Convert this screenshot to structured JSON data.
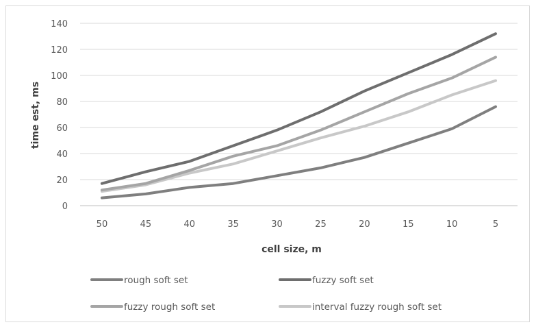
{
  "chart_data": {
    "type": "line",
    "title": "",
    "xlabel": "cell size, m",
    "ylabel": "time est, ms",
    "ylim": [
      0,
      140
    ],
    "yticks": [
      0,
      20,
      40,
      60,
      80,
      100,
      120,
      140
    ],
    "categories": [
      "50",
      "45",
      "40",
      "35",
      "30",
      "25",
      "20",
      "15",
      "10",
      "5"
    ],
    "grid": true,
    "legend_position": "bottom",
    "series": [
      {
        "name": "rough soft set",
        "color": "#7f7f7f",
        "values": [
          6,
          9,
          14,
          17,
          23,
          29,
          37,
          48,
          59,
          76
        ]
      },
      {
        "name": "fuzzy soft set",
        "color": "#6e6e6e",
        "values": [
          17,
          26,
          34,
          46,
          58,
          72,
          88,
          102,
          116,
          132
        ]
      },
      {
        "name": "fuzzy rough soft set",
        "color": "#a5a5a5",
        "values": [
          12,
          17,
          27,
          38,
          46,
          58,
          72,
          86,
          98,
          114
        ]
      },
      {
        "name": "interval fuzzy rough soft set",
        "color": "#c8c8c8",
        "values": [
          11,
          16,
          25,
          32,
          42,
          52,
          61,
          72,
          85,
          96
        ]
      }
    ]
  }
}
